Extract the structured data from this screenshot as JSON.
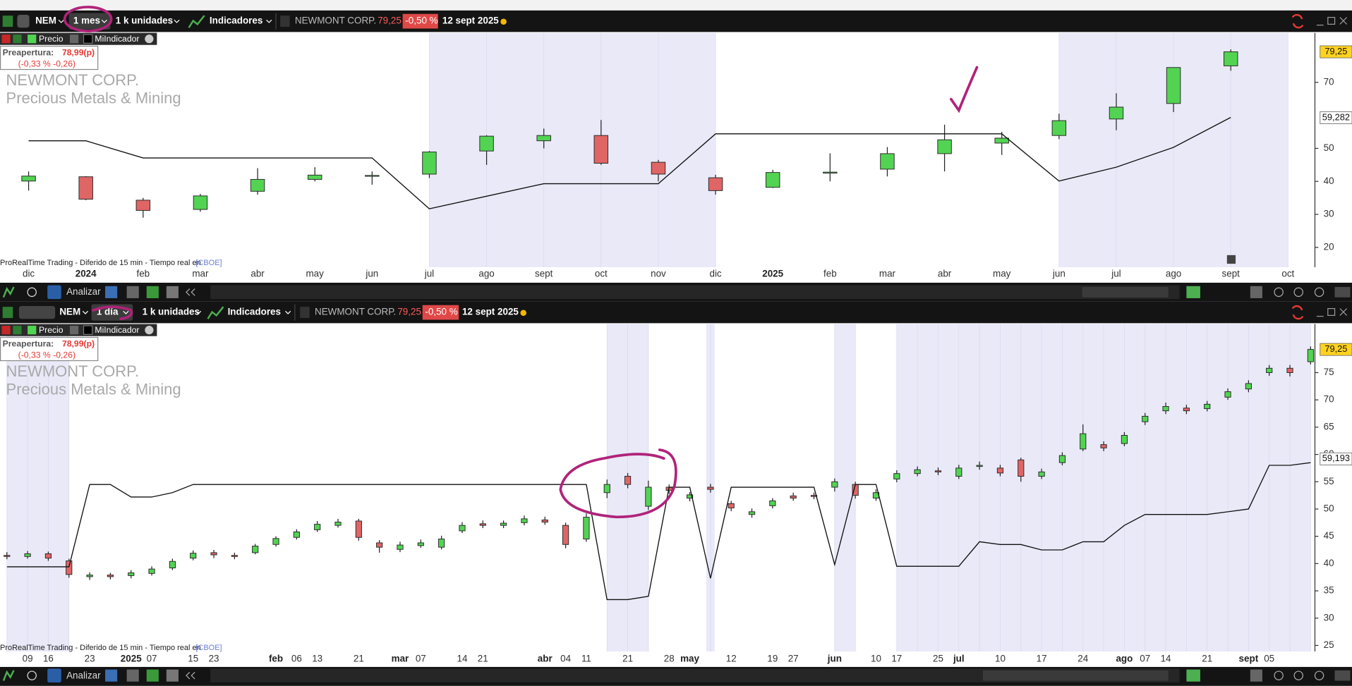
{
  "toolbars": [
    {
      "symbol": "NEM",
      "timeframe": "1 mes",
      "units": "1 k unidades",
      "indicators": "Indicadores",
      "name": "NEWMONT CORP.",
      "price": "79,25",
      "change": "-0,50 %",
      "date": "12 sept 2025",
      "preopen_label": "Preapertura:",
      "preopen_value": "78,99(p)",
      "preopen_change": "(-0,33 % -0,26)",
      "watermark": [
        "NEWMONT CORP.",
        "Precious Metals & Mining"
      ],
      "footer": "ProRealTime Trading - Diferido de 15 min - Tiempo real en",
      "footer_link": "[CBOE]",
      "analyze": "Analizar"
    },
    {
      "symbol": "NEM",
      "timeframe": "1 día",
      "units": "1 k unidades",
      "indicators": "Indicadores",
      "name": "NEWMONT CORP.",
      "price": "79,25",
      "change": "-0,50 %",
      "date": "12 sept 2025",
      "preopen_label": "Preapertura:",
      "preopen_value": "78,99(p)",
      "preopen_change": "(-0,33 % -0,26)",
      "watermark": [
        "NEWMONT CORP.",
        "Precious Metals & Mining"
      ],
      "footer": "ProRealTime Trading - Diferido de 15 min - Tiempo real en",
      "footer_link": "[CBOE]",
      "analyze": "Analizar"
    }
  ],
  "chart_data": [
    {
      "type": "candlestick",
      "price_name": "Precio",
      "up_color": "#52d452",
      "down_color": "#e06565",
      "categories": [
        "dic",
        "2024",
        "feb",
        "mar",
        "abr",
        "may",
        "jun",
        "jul",
        "ago",
        "sept",
        "oct",
        "nov",
        "dic",
        "2025",
        "feb",
        "mar",
        "abr",
        "may",
        "jun",
        "jul",
        "ago",
        "sept",
        "oct"
      ],
      "open": [
        40.1,
        41.4,
        34.3,
        31.5,
        37,
        40.6,
        41.6,
        42.2,
        49.2,
        52.3,
        53.9,
        45.8,
        41.1,
        38.2,
        42.5,
        43.7,
        48.4,
        51.6,
        53.9,
        58.9,
        63.6,
        75,
        null
      ],
      "high": [
        43,
        41.6,
        35,
        36.2,
        44,
        44.3,
        43,
        49.2,
        54,
        56,
        58.6,
        46.5,
        42,
        43.5,
        48.5,
        50.4,
        57.2,
        55,
        60.5,
        66.7,
        74.5,
        80,
        null
      ],
      "low": [
        37.2,
        34.3,
        29,
        30.8,
        36,
        40,
        39,
        41,
        45,
        50,
        45,
        40,
        36,
        38,
        40,
        41.5,
        43,
        48,
        52.8,
        55.5,
        61,
        73.5,
        null
      ],
      "close": [
        41.6,
        34.6,
        31.2,
        35.6,
        40.6,
        41.9,
        41.8,
        48.9,
        53.7,
        53.9,
        45.5,
        42.2,
        37.2,
        42.7,
        42.8,
        48.4,
        52.6,
        53.1,
        58.4,
        62.5,
        74.5,
        79.25,
        null
      ],
      "series": [
        {
          "name": "MiIndicador",
          "color": "#111111",
          "values": [
            52.3,
            52.3,
            47.1,
            47.1,
            47.1,
            47.1,
            47.1,
            31.7,
            35.5,
            39.3,
            39.3,
            39.3,
            54.4,
            54.4,
            54.4,
            54.4,
            54.4,
            54.4,
            40.1,
            44.3,
            50.3,
            59.4,
            null
          ]
        }
      ],
      "shaded": [
        false,
        false,
        false,
        false,
        false,
        false,
        false,
        true,
        true,
        true,
        true,
        true,
        true,
        false,
        false,
        false,
        false,
        false,
        true,
        true,
        true,
        true,
        true
      ],
      "ylim": [
        14,
        85
      ],
      "yticks": [
        20,
        30,
        40,
        50,
        70
      ],
      "price_markers": [
        {
          "value": 79.25,
          "label": "79,25",
          "color": "#ffd21f"
        },
        {
          "value": 59.282,
          "label": "59,282",
          "color": "#ffffff"
        }
      ]
    },
    {
      "type": "candlestick",
      "price_name": "Precio",
      "up_color": "#52d452",
      "down_color": "#e06565",
      "categories": [
        null,
        "09",
        "16",
        null,
        "23",
        null,
        "2025",
        "07",
        null,
        "15",
        "23",
        null,
        null,
        "feb",
        "06",
        "13",
        null,
        "21",
        null,
        "mar",
        "07",
        null,
        "14",
        "21",
        null,
        null,
        "abr",
        "04",
        "11",
        null,
        "21",
        null,
        "28",
        "may",
        null,
        "12",
        null,
        "19",
        "27",
        null,
        "jun",
        null,
        "10",
        "17",
        null,
        "25",
        "jul",
        null,
        "10",
        null,
        "17",
        null,
        "24",
        null,
        "ago",
        "07",
        "14",
        null,
        "21",
        null,
        "sept",
        "05",
        null,
        null
      ],
      "open": [
        41.5,
        41.3,
        41.8,
        40.5,
        37.6,
        37.9,
        37.8,
        38.2,
        39.2,
        41.0,
        42.0,
        41.5,
        42.0,
        43.5,
        44.8,
        46.2,
        47.0,
        47.8,
        43.8,
        42.6,
        43.3,
        43.0,
        46.0,
        47.3,
        47.0,
        47.5,
        48.0,
        47.0,
        44.5,
        53.0,
        56.0,
        50.5,
        54.0,
        52.0,
        54.0,
        51.0,
        49.0,
        50.6,
        52.4,
        52.5,
        54.0,
        54.5,
        52.0,
        55.5,
        56.5,
        57.0,
        56.0,
        57.8,
        57.5,
        59.0,
        56.0,
        58.5,
        61.0,
        61.8,
        62.0,
        66.0,
        68.0,
        68.5,
        68.4,
        70.5,
        72.0,
        75.0,
        75.8,
        77.0
      ],
      "high": [
        42.1,
        42.3,
        42.2,
        40.9,
        38.4,
        38.3,
        38.8,
        39.5,
        40.9,
        42.4,
        42.5,
        42.0,
        43.6,
        45.0,
        46.3,
        47.8,
        48.2,
        48.2,
        44.3,
        44.0,
        44.4,
        45.1,
        47.6,
        47.9,
        47.9,
        48.8,
        48.6,
        47.5,
        49.2,
        55.4,
        56.6,
        55.2,
        54.5,
        53.1,
        54.6,
        51.5,
        50.1,
        52.0,
        53.0,
        53.0,
        55.6,
        55.0,
        53.6,
        57.1,
        57.8,
        57.6,
        58.1,
        58.7,
        58.1,
        59.4,
        57.4,
        60.4,
        65.5,
        62.4,
        64.1,
        67.6,
        69.5,
        69.1,
        69.8,
        72.1,
        73.6,
        76.4,
        76.4,
        79.8
      ],
      "low": [
        40.8,
        40.9,
        40.5,
        37.4,
        37.0,
        37.1,
        37.3,
        37.8,
        38.8,
        40.6,
        41.0,
        40.8,
        41.7,
        43.1,
        44.4,
        45.8,
        46.6,
        44.2,
        42.0,
        42.1,
        42.9,
        42.6,
        45.6,
        46.5,
        46.5,
        47.0,
        47.1,
        42.8,
        44.0,
        52.0,
        53.8,
        49.8,
        52.8,
        51.4,
        53.0,
        49.6,
        48.4,
        50.1,
        51.5,
        51.8,
        53.2,
        51.9,
        51.5,
        54.9,
        56.0,
        56.2,
        55.5,
        57.2,
        56.0,
        55.0,
        55.5,
        58.0,
        60.6,
        60.6,
        61.5,
        65.4,
        67.4,
        67.4,
        67.9,
        70.0,
        71.4,
        74.4,
        74.3,
        76.5
      ],
      "close": [
        41.3,
        41.8,
        41.0,
        38.0,
        37.9,
        37.6,
        38.3,
        39.0,
        40.4,
        41.9,
        41.6,
        41.3,
        43.2,
        44.6,
        45.8,
        47.2,
        47.6,
        44.8,
        43.0,
        43.4,
        43.8,
        44.5,
        47.0,
        47.0,
        47.4,
        48.2,
        47.6,
        43.5,
        48.5,
        54.5,
        54.5,
        54.0,
        53.4,
        52.6,
        53.6,
        50.2,
        49.5,
        51.5,
        52.0,
        52.3,
        55.0,
        52.5,
        53.0,
        56.5,
        57.2,
        56.8,
        57.5,
        58.0,
        56.6,
        56.0,
        56.8,
        59.8,
        63.8,
        61.2,
        63.5,
        67.0,
        68.8,
        68.0,
        69.2,
        71.5,
        73.0,
        75.8,
        75.0,
        79.25
      ],
      "series": [
        {
          "name": "MiIndicador",
          "color": "#111111",
          "values": [
            39.4,
            39.4,
            39.4,
            39.4,
            54.5,
            54.5,
            52.2,
            52.2,
            53.0,
            54.5,
            54.5,
            54.5,
            54.5,
            54.5,
            54.5,
            54.5,
            54.5,
            54.5,
            54.5,
            54.5,
            54.5,
            54.5,
            54.5,
            54.5,
            54.5,
            54.5,
            54.5,
            54.5,
            54.5,
            33.4,
            33.4,
            34.0,
            54.0,
            54.0,
            37.3,
            54.0,
            54.0,
            54.0,
            54.0,
            54.0,
            39.8,
            54.5,
            54.5,
            39.5,
            39.5,
            39.5,
            39.5,
            44.0,
            43.5,
            43.5,
            42.5,
            42.5,
            44.0,
            44.0,
            47.0,
            49.0,
            49.0,
            49.0,
            49.0,
            49.5,
            50.0,
            58.0,
            58.0,
            58.5
          ]
        }
      ],
      "shaded": [
        true,
        true,
        true,
        true,
        false,
        false,
        false,
        false,
        false,
        false,
        false,
        false,
        false,
        false,
        false,
        false,
        false,
        false,
        false,
        false,
        false,
        false,
        false,
        false,
        false,
        false,
        false,
        false,
        false,
        true,
        true,
        true,
        false,
        false,
        true,
        false,
        false,
        false,
        false,
        false,
        true,
        true,
        false,
        true,
        true,
        true,
        true,
        true,
        true,
        true,
        true,
        true,
        true,
        true,
        true,
        true,
        true,
        true,
        true,
        true,
        true,
        true,
        true,
        true
      ],
      "ylim": [
        23.9,
        83.9
      ],
      "yticks": [
        25,
        30,
        35,
        40,
        45,
        50,
        55,
        60,
        65,
        70,
        75
      ],
      "price_markers": [
        {
          "value": 79.25,
          "label": "79,25",
          "color": "#ffd21f"
        },
        {
          "value": 59.193,
          "label": "59,193",
          "color": "#ffffff"
        }
      ]
    }
  ]
}
